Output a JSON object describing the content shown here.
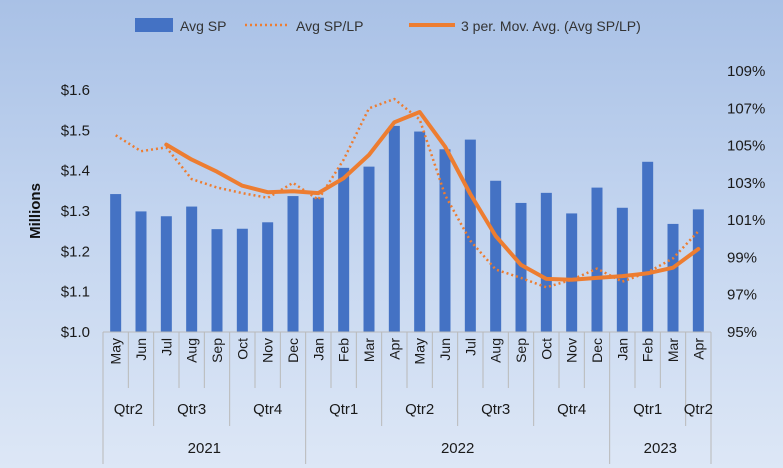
{
  "chart_data": {
    "type": "bar",
    "categories": [
      "May",
      "Jun",
      "Jul",
      "Aug",
      "Sep",
      "Oct",
      "Nov",
      "Dec",
      "Jan",
      "Feb",
      "Mar",
      "Apr",
      "May",
      "Jun",
      "Jul",
      "Aug",
      "Sep",
      "Oct",
      "Nov",
      "Dec",
      "Jan",
      "Feb",
      "Mar",
      "Apr"
    ],
    "quarters": [
      {
        "label": "Qtr2",
        "from": 0,
        "to": 1
      },
      {
        "label": "Qtr3",
        "from": 2,
        "to": 4
      },
      {
        "label": "Qtr4",
        "from": 5,
        "to": 7
      },
      {
        "label": "Qtr1",
        "from": 8,
        "to": 10
      },
      {
        "label": "Qtr2",
        "from": 11,
        "to": 13
      },
      {
        "label": "Qtr3",
        "from": 14,
        "to": 16
      },
      {
        "label": "Qtr4",
        "from": 17,
        "to": 19
      },
      {
        "label": "Qtr1",
        "from": 20,
        "to": 22
      },
      {
        "label": "Qtr2",
        "from": 23,
        "to": 23
      }
    ],
    "years": [
      {
        "label": "2021",
        "from": 0,
        "to": 7
      },
      {
        "label": "2022",
        "from": 8,
        "to": 19
      },
      {
        "label": "2023",
        "from": 20,
        "to": 23
      }
    ],
    "ylabel": "Millions",
    "ylim": [
      1.0,
      1.6
    ],
    "y_ticks": [
      "$1.0",
      "$1.1",
      "$1.2",
      "$1.3",
      "$1.4",
      "$1.5",
      "$1.6"
    ],
    "y2lim": [
      0.95,
      1.09
    ],
    "y2_ticks": [
      "95%",
      "97%",
      "99%",
      "101%",
      "103%",
      "105%",
      "107%",
      "109%"
    ],
    "legend_position": "top",
    "series": [
      {
        "name": "Avg SP",
        "kind": "bar",
        "axis": "left",
        "color": "#4472c4",
        "values": [
          1.342,
          1.299,
          1.287,
          1.311,
          1.255,
          1.256,
          1.272,
          1.337,
          1.333,
          1.407,
          1.41,
          1.511,
          1.497,
          1.453,
          1.477,
          1.375,
          1.32,
          1.345,
          1.294,
          1.358,
          1.308,
          1.422,
          1.268,
          1.304
        ]
      },
      {
        "name": "Avg SP/LP",
        "kind": "line-dotted",
        "axis": "right",
        "color": "#ed7d31",
        "values": [
          1.0555,
          1.047,
          1.049,
          1.032,
          1.0275,
          1.0245,
          1.022,
          1.03,
          1.021,
          1.0425,
          1.07,
          1.075,
          1.064,
          1.0235,
          0.999,
          0.9835,
          0.979,
          0.974,
          0.978,
          0.984,
          0.977,
          0.982,
          0.9895,
          1.004
        ]
      },
      {
        "name": "3 per. Mov. Avg. (Avg SP/LP)",
        "kind": "line",
        "axis": "right",
        "color": "#ed7d31",
        "values": [
          null,
          null,
          1.0505,
          1.0425,
          1.036,
          1.0285,
          1.025,
          1.0255,
          1.0245,
          1.0325,
          1.045,
          1.0625,
          1.068,
          1.0495,
          1.024,
          1.0015,
          0.986,
          0.9785,
          0.978,
          0.979,
          0.98,
          0.9815,
          0.9845,
          0.9945
        ]
      }
    ]
  }
}
